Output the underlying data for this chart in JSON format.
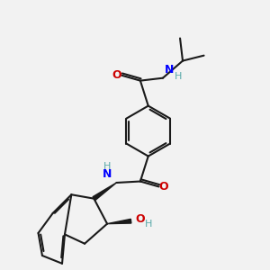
{
  "bg_color": "#f2f2f2",
  "bond_color": "#1a1a1a",
  "N_color": "#0000ff",
  "O_color": "#cc0000",
  "H_color": "#5aaaaa",
  "line_width": 1.5,
  "figsize": [
    3.0,
    3.0
  ],
  "dpi": 100,
  "xlim": [
    0,
    10
  ],
  "ylim": [
    0,
    10
  ]
}
